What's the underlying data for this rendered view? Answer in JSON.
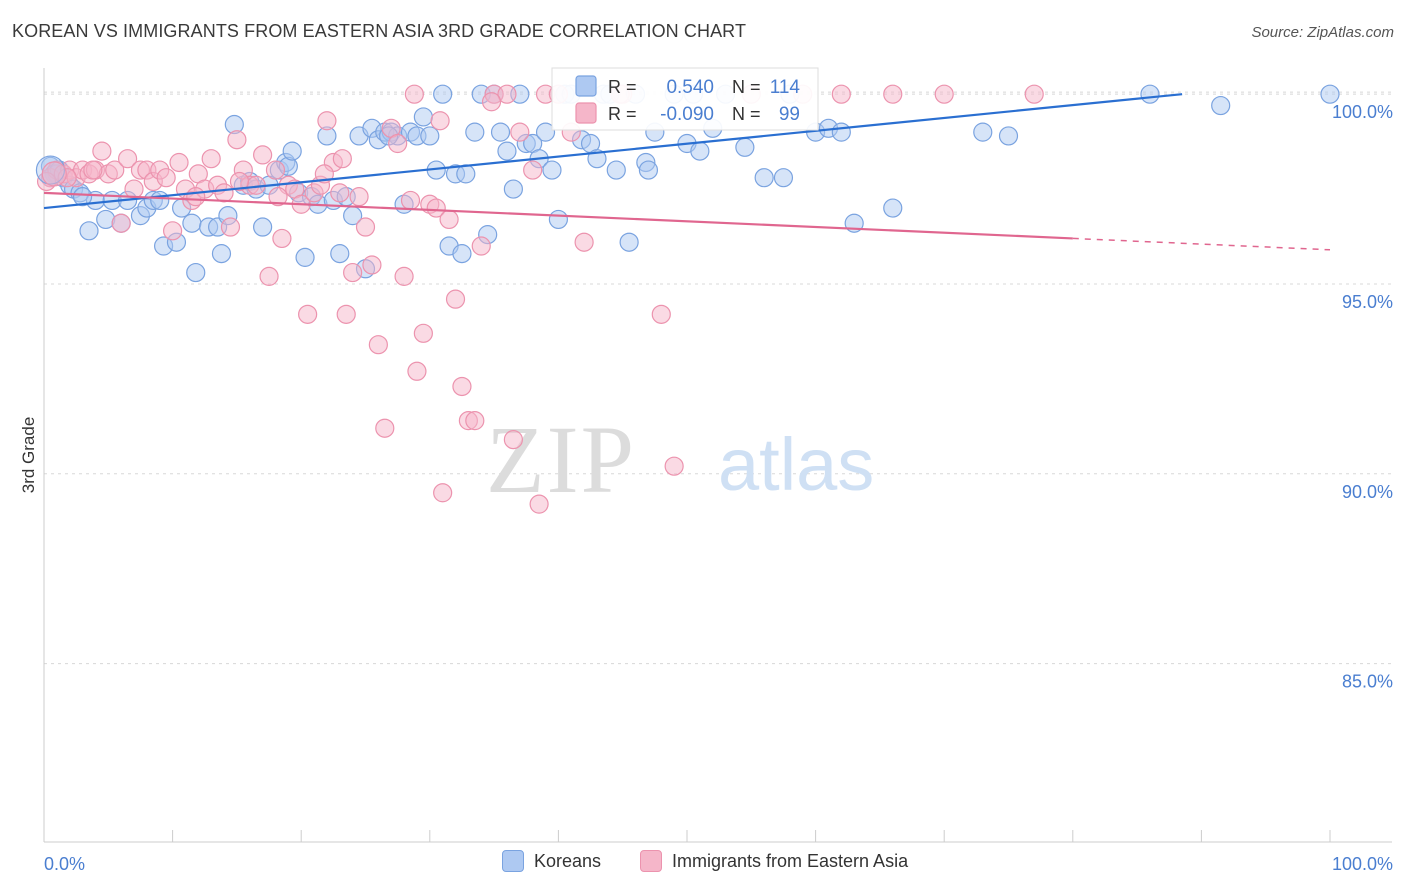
{
  "title": "KOREAN VS IMMIGRANTS FROM EASTERN ASIA 3RD GRADE CORRELATION CHART",
  "source": "Source: ZipAtlas.com",
  "watermark": {
    "zip": "ZIP",
    "atlas": "atlas"
  },
  "colors": {
    "blue_fill": "#aec9f2",
    "blue_stroke": "#7aa3e0",
    "blue_line": "#2a6fd1",
    "pink_fill": "#f5b6c9",
    "pink_stroke": "#ec93ae",
    "pink_line": "#e0668f",
    "axis_text": "#4a7ed0",
    "grid": "#d8d8d8"
  },
  "legend_stats": [
    {
      "r_label": "R =",
      "r_value": "0.540",
      "n_label": "N =",
      "n_value": "114",
      "color": "blue"
    },
    {
      "r_label": "R =",
      "r_value": "-0.090",
      "n_label": "N =",
      "n_value": "99",
      "color": "pink"
    }
  ],
  "chart_data": {
    "type": "scatter",
    "ylabel": "3rd Grade",
    "xlabel": "",
    "x_tick_labels": [
      "0.0%",
      "100.0%"
    ],
    "y_tick_labels": [
      "100.0%",
      "95.0%",
      "90.0%",
      "85.0%"
    ],
    "y_ticks": [
      100,
      95,
      90,
      85
    ],
    "xlim": [
      0,
      100
    ],
    "ylim": [
      80.3,
      100.9
    ],
    "grid": true,
    "legend_position": "top-center",
    "series": [
      {
        "name": "Koreans",
        "color": "blue",
        "r": 0.54,
        "n": 114,
        "trend": {
          "x": [
            0,
            88.5
          ],
          "y": [
            97.0,
            100.0
          ]
        },
        "points": [
          [
            0.5,
            98.1
          ],
          [
            0.8,
            97.9
          ],
          [
            1.0,
            97.9
          ],
          [
            1.5,
            97.8
          ],
          [
            2.0,
            97.6
          ],
          [
            2.3,
            97.5
          ],
          [
            2.8,
            97.4
          ],
          [
            3.5,
            96.4
          ],
          [
            4.0,
            97.2
          ],
          [
            4.8,
            96.7
          ],
          [
            5.3,
            97.2
          ],
          [
            6.0,
            96.6
          ],
          [
            6.5,
            97.2
          ],
          [
            7.5,
            96.8
          ],
          [
            8.0,
            97.0
          ],
          [
            8.5,
            97.2
          ],
          [
            9.3,
            96.0
          ],
          [
            10.3,
            96.1
          ],
          [
            10.7,
            97.0
          ],
          [
            11.5,
            96.6
          ],
          [
            11.8,
            95.3
          ],
          [
            12.8,
            96.5
          ],
          [
            13.5,
            96.5
          ],
          [
            13.8,
            95.8
          ],
          [
            14.3,
            96.8
          ],
          [
            14.8,
            99.2
          ],
          [
            15.5,
            97.6
          ],
          [
            16.0,
            97.7
          ],
          [
            16.5,
            97.5
          ],
          [
            17.0,
            96.5
          ],
          [
            17.5,
            97.6
          ],
          [
            18.3,
            98.0
          ],
          [
            18.8,
            98.2
          ],
          [
            19.0,
            98.1
          ],
          [
            19.3,
            98.5
          ],
          [
            19.8,
            97.4
          ],
          [
            20.3,
            95.7
          ],
          [
            20.8,
            97.3
          ],
          [
            21.3,
            97.1
          ],
          [
            22.0,
            98.9
          ],
          [
            22.5,
            97.2
          ],
          [
            23.0,
            95.8
          ],
          [
            23.5,
            97.3
          ],
          [
            24.0,
            96.8
          ],
          [
            24.5,
            98.9
          ],
          [
            25.0,
            95.4
          ],
          [
            25.5,
            99.1
          ],
          [
            26.0,
            98.8
          ],
          [
            26.5,
            99.0
          ],
          [
            27.0,
            99.0
          ],
          [
            27.5,
            98.9
          ],
          [
            28.0,
            97.1
          ],
          [
            28.5,
            99.0
          ],
          [
            29.0,
            98.9
          ],
          [
            29.5,
            99.4
          ],
          [
            30.0,
            98.9
          ],
          [
            30.5,
            98.0
          ],
          [
            31.0,
            100.0
          ],
          [
            31.5,
            96.0
          ],
          [
            32.0,
            97.9
          ],
          [
            32.5,
            95.8
          ],
          [
            33.5,
            99.0
          ],
          [
            34.0,
            100.0
          ],
          [
            34.5,
            96.3
          ],
          [
            35.0,
            100.0
          ],
          [
            35.5,
            99.0
          ],
          [
            36.0,
            98.5
          ],
          [
            36.5,
            97.5
          ],
          [
            37.0,
            100.0
          ],
          [
            37.5,
            98.7
          ],
          [
            38.0,
            98.7
          ],
          [
            38.5,
            98.3
          ],
          [
            39.0,
            99.0
          ],
          [
            39.5,
            98.0
          ],
          [
            40.0,
            96.7
          ],
          [
            40.5,
            100.0
          ],
          [
            41.0,
            100.0
          ],
          [
            41.8,
            98.8
          ],
          [
            42.5,
            98.7
          ],
          [
            43.0,
            98.3
          ],
          [
            43.5,
            100.0
          ],
          [
            44.5,
            98.0
          ],
          [
            45.5,
            96.1
          ],
          [
            46.0,
            100.0
          ],
          [
            46.8,
            98.2
          ],
          [
            47.0,
            98.0
          ],
          [
            47.5,
            99.0
          ],
          [
            49.0,
            100.0
          ],
          [
            50.0,
            98.7
          ],
          [
            50.5,
            100.0
          ],
          [
            51.0,
            98.5
          ],
          [
            52.0,
            99.1
          ],
          [
            53.0,
            100.0
          ],
          [
            54.5,
            98.6
          ],
          [
            56.0,
            97.8
          ],
          [
            57.5,
            97.8
          ],
          [
            58.0,
            100.0
          ],
          [
            60.0,
            99.0
          ],
          [
            61.0,
            99.1
          ],
          [
            62.0,
            99.0
          ],
          [
            63.0,
            96.6
          ],
          [
            66.0,
            97.0
          ],
          [
            73.0,
            99.0
          ],
          [
            75.0,
            98.9
          ],
          [
            86.0,
            100.0
          ],
          [
            91.5,
            99.7
          ],
          [
            100.0,
            100.0
          ],
          [
            0.5,
            97.8
          ],
          [
            1.2,
            98.0
          ],
          [
            3.0,
            97.3
          ],
          [
            9.0,
            97.2
          ],
          [
            26.8,
            98.9
          ],
          [
            32.8,
            97.9
          ],
          [
            44.0,
            100.0
          ]
        ]
      },
      {
        "name": "Immigrants from Eastern Asia",
        "color": "pink",
        "r": -0.09,
        "n": 99,
        "trend": {
          "x": [
            0,
            80
          ],
          "y": [
            97.4,
            96.2
          ]
        },
        "trend_dashed": {
          "x": [
            80,
            100
          ],
          "y": [
            96.2,
            95.9
          ]
        },
        "points": [
          [
            0.5,
            97.8
          ],
          [
            1.0,
            98.0
          ],
          [
            1.5,
            97.9
          ],
          [
            2.0,
            98.0
          ],
          [
            2.5,
            97.8
          ],
          [
            3.0,
            98.0
          ],
          [
            3.5,
            97.9
          ],
          [
            4.0,
            98.0
          ],
          [
            4.5,
            98.5
          ],
          [
            5.0,
            97.9
          ],
          [
            5.5,
            98.0
          ],
          [
            6.0,
            96.6
          ],
          [
            6.5,
            98.3
          ],
          [
            7.0,
            97.5
          ],
          [
            7.5,
            98.0
          ],
          [
            8.0,
            98.0
          ],
          [
            8.5,
            97.7
          ],
          [
            9.0,
            98.0
          ],
          [
            9.5,
            97.8
          ],
          [
            10.0,
            96.4
          ],
          [
            10.5,
            98.2
          ],
          [
            11.0,
            97.5
          ],
          [
            11.5,
            97.2
          ],
          [
            12.0,
            97.9
          ],
          [
            12.5,
            97.5
          ],
          [
            13.0,
            98.3
          ],
          [
            13.5,
            97.6
          ],
          [
            14.0,
            97.4
          ],
          [
            14.5,
            96.5
          ],
          [
            15.0,
            98.8
          ],
          [
            15.5,
            98.0
          ],
          [
            16.0,
            97.6
          ],
          [
            16.5,
            97.6
          ],
          [
            17.0,
            98.4
          ],
          [
            17.5,
            95.2
          ],
          [
            18.0,
            98.0
          ],
          [
            18.5,
            96.2
          ],
          [
            19.0,
            97.6
          ],
          [
            19.5,
            97.5
          ],
          [
            20.0,
            97.1
          ],
          [
            20.5,
            94.2
          ],
          [
            21.0,
            97.4
          ],
          [
            21.5,
            97.6
          ],
          [
            22.0,
            99.3
          ],
          [
            22.5,
            98.2
          ],
          [
            23.0,
            97.4
          ],
          [
            23.5,
            94.2
          ],
          [
            24.0,
            95.3
          ],
          [
            24.5,
            97.3
          ],
          [
            25.0,
            96.5
          ],
          [
            25.5,
            95.5
          ],
          [
            26.0,
            93.4
          ],
          [
            26.5,
            91.2
          ],
          [
            27.0,
            99.1
          ],
          [
            27.5,
            98.7
          ],
          [
            28.0,
            95.2
          ],
          [
            28.5,
            97.2
          ],
          [
            29.0,
            92.7
          ],
          [
            29.5,
            93.7
          ],
          [
            30.0,
            97.1
          ],
          [
            30.5,
            97.0
          ],
          [
            31.0,
            89.5
          ],
          [
            31.5,
            96.7
          ],
          [
            32.0,
            94.6
          ],
          [
            32.5,
            92.3
          ],
          [
            33.0,
            91.4
          ],
          [
            33.5,
            91.4
          ],
          [
            34.0,
            96.0
          ],
          [
            35.0,
            100.0
          ],
          [
            36.0,
            100.0
          ],
          [
            36.5,
            90.9
          ],
          [
            37.0,
            99.0
          ],
          [
            38.0,
            98.0
          ],
          [
            38.5,
            89.2
          ],
          [
            39.0,
            100.0
          ],
          [
            40.0,
            100.0
          ],
          [
            41.0,
            99.0
          ],
          [
            42.0,
            96.1
          ],
          [
            45.0,
            100.0
          ],
          [
            48.0,
            94.2
          ],
          [
            49.0,
            90.2
          ],
          [
            55.0,
            100.0
          ],
          [
            59.0,
            100.0
          ],
          [
            62.0,
            100.0
          ],
          [
            66.0,
            100.0
          ],
          [
            70.0,
            100.0
          ],
          [
            77.0,
            100.0
          ],
          [
            1.8,
            97.8
          ],
          [
            3.8,
            98.0
          ],
          [
            11.8,
            97.3
          ],
          [
            15.2,
            97.7
          ],
          [
            18.2,
            97.3
          ],
          [
            21.8,
            97.9
          ],
          [
            23.2,
            98.3
          ],
          [
            28.8,
            100.0
          ],
          [
            30.8,
            99.3
          ],
          [
            34.8,
            99.8
          ],
          [
            44.8,
            100.0
          ],
          [
            0.2,
            97.7
          ]
        ]
      }
    ]
  },
  "legend_bottom": [
    {
      "label": "Koreans",
      "color": "blue"
    },
    {
      "label": "Immigrants from Eastern Asia",
      "color": "pink"
    }
  ]
}
